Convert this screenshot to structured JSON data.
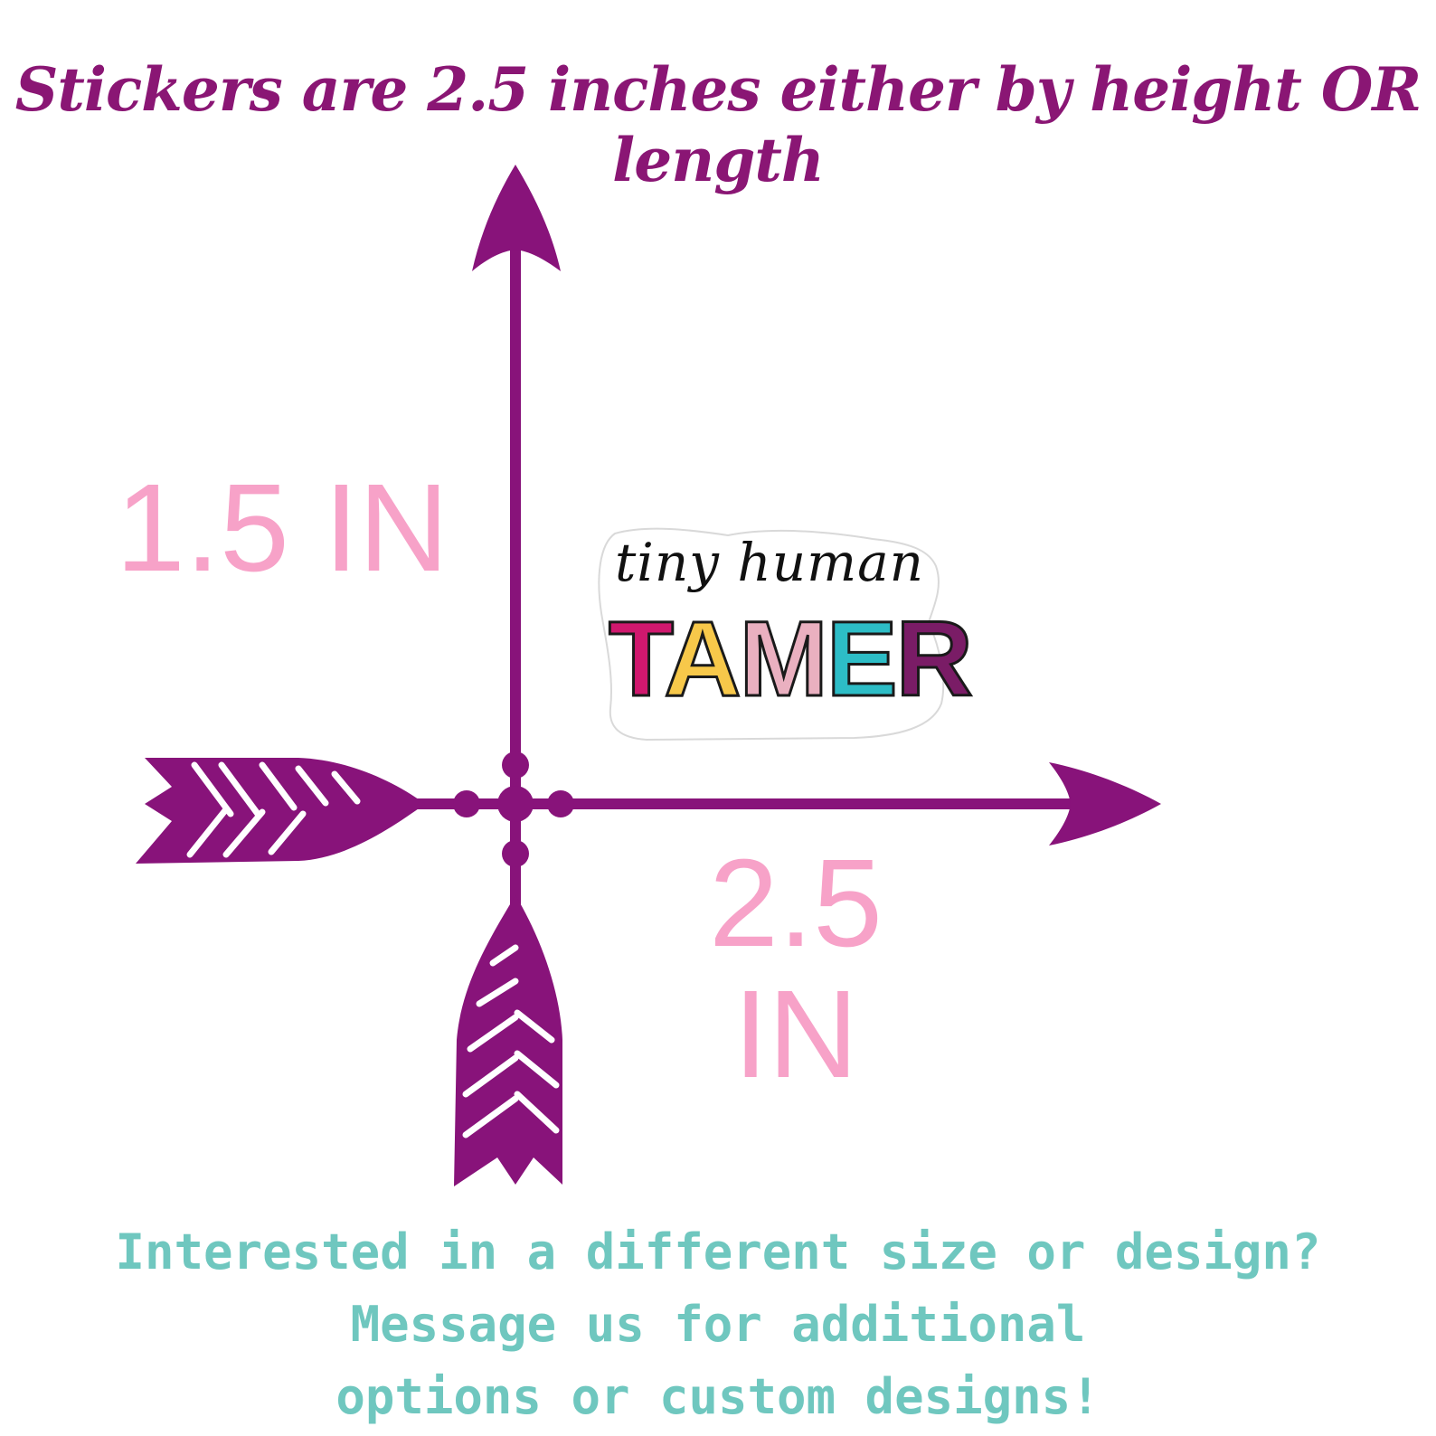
{
  "headline": "Stickers are 2.5 inches either by height OR length",
  "height_label": "1.5 IN",
  "width_label": {
    "line1": "2.5",
    "line2": "IN"
  },
  "sticker": {
    "script_text": "tiny human",
    "word_letters": [
      "T",
      "A",
      "M",
      "E",
      "R"
    ],
    "letter_colors": [
      "#d0186e",
      "#f7c84a",
      "#eab0c0",
      "#2dbdc6",
      "#7a1c66"
    ]
  },
  "footer": {
    "line1": "Interested in a different size or design? Message us for additional",
    "line2": "options or custom designs!"
  },
  "colors": {
    "arrow": "#88137a",
    "headline": "#8a1674",
    "dimension": "#f7a2c8",
    "footer": "#6fc7bf"
  }
}
